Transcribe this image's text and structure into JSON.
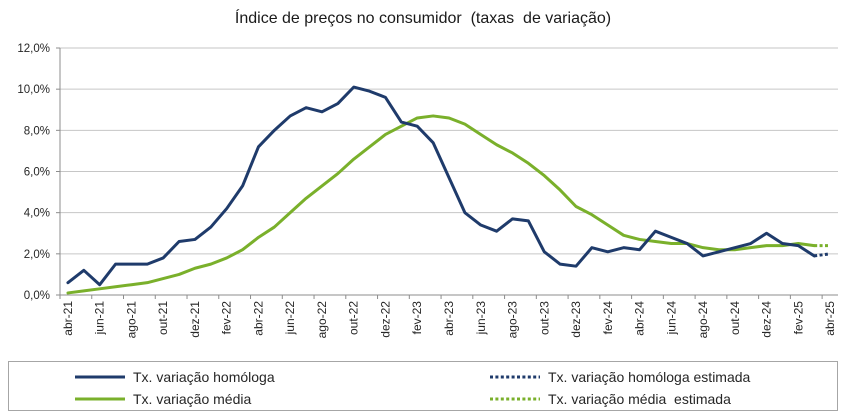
{
  "chart_data": {
    "type": "line",
    "title": "Índice de preços no consumidor  (taxas  de variação)",
    "categories": [
      "abr-21",
      "",
      "jun-21",
      "",
      "ago-21",
      "",
      "out-21",
      "",
      "dez-21",
      "",
      "fev-22",
      "",
      "abr-22",
      "",
      "jun-22",
      "",
      "ago-22",
      "",
      "out-22",
      "",
      "dez-22",
      "",
      "fev-23",
      "",
      "abr-23",
      "",
      "jun-23",
      "",
      "ago-23",
      "",
      "out-23",
      "",
      "dez-23",
      "",
      "fev-24",
      "",
      "abr-24",
      "",
      "jun-24",
      "",
      "ago-24",
      "",
      "out-24",
      "",
      "dez-24",
      "",
      "fev-25",
      "",
      "abr-25"
    ],
    "ylim": [
      0,
      12
    ],
    "y_ticks": [
      0,
      2,
      4,
      6,
      8,
      10,
      12
    ],
    "y_tick_labels": [
      "0,0%",
      "2,0%",
      "4,0%",
      "6,0%",
      "8,0%",
      "10,0%",
      "12,0%"
    ],
    "grid": "horizontal",
    "legend": "bottom",
    "series": [
      {
        "name": "Tx. variação homóloga",
        "color": "#1F3B6B",
        "line_style": "solid",
        "values": [
          0.6,
          1.2,
          0.5,
          1.5,
          1.5,
          1.5,
          1.8,
          2.6,
          2.7,
          3.3,
          4.2,
          5.3,
          7.2,
          8.0,
          8.7,
          9.1,
          8.9,
          9.3,
          10.1,
          9.9,
          9.6,
          8.4,
          8.2,
          7.4,
          5.7,
          4.0,
          3.4,
          3.1,
          3.7,
          3.6,
          2.1,
          1.5,
          1.4,
          2.3,
          2.1,
          2.3,
          2.2,
          3.1,
          2.8,
          2.5,
          1.9,
          2.1,
          2.3,
          2.5,
          3.0,
          2.5,
          2.4,
          1.9,
          null
        ]
      },
      {
        "name": "Tx. variação homóloga estimada",
        "color": "#1F3B6B",
        "line_style": "dotted",
        "values": [
          null,
          null,
          null,
          null,
          null,
          null,
          null,
          null,
          null,
          null,
          null,
          null,
          null,
          null,
          null,
          null,
          null,
          null,
          null,
          null,
          null,
          null,
          null,
          null,
          null,
          null,
          null,
          null,
          null,
          null,
          null,
          null,
          null,
          null,
          null,
          null,
          null,
          null,
          null,
          null,
          null,
          null,
          null,
          null,
          null,
          null,
          null,
          1.9,
          2.0
        ]
      },
      {
        "name": "Tx. variação média",
        "color": "#7AB02B",
        "line_style": "solid",
        "values": [
          0.1,
          0.2,
          0.3,
          0.4,
          0.5,
          0.6,
          0.8,
          1.0,
          1.3,
          1.5,
          1.8,
          2.2,
          2.8,
          3.3,
          4.0,
          4.7,
          5.3,
          5.9,
          6.6,
          7.2,
          7.8,
          8.2,
          8.6,
          8.7,
          8.6,
          8.3,
          7.8,
          7.3,
          6.9,
          6.4,
          5.8,
          5.1,
          4.3,
          3.9,
          3.4,
          2.9,
          2.7,
          2.6,
          2.5,
          2.5,
          2.3,
          2.2,
          2.2,
          2.3,
          2.4,
          2.4,
          2.5,
          2.4,
          null
        ]
      },
      {
        "name": "Tx. variação média  estimada",
        "color": "#7AB02B",
        "line_style": "dotted",
        "values": [
          null,
          null,
          null,
          null,
          null,
          null,
          null,
          null,
          null,
          null,
          null,
          null,
          null,
          null,
          null,
          null,
          null,
          null,
          null,
          null,
          null,
          null,
          null,
          null,
          null,
          null,
          null,
          null,
          null,
          null,
          null,
          null,
          null,
          null,
          null,
          null,
          null,
          null,
          null,
          null,
          null,
          null,
          null,
          null,
          null,
          null,
          null,
          2.4,
          2.4
        ]
      }
    ]
  }
}
